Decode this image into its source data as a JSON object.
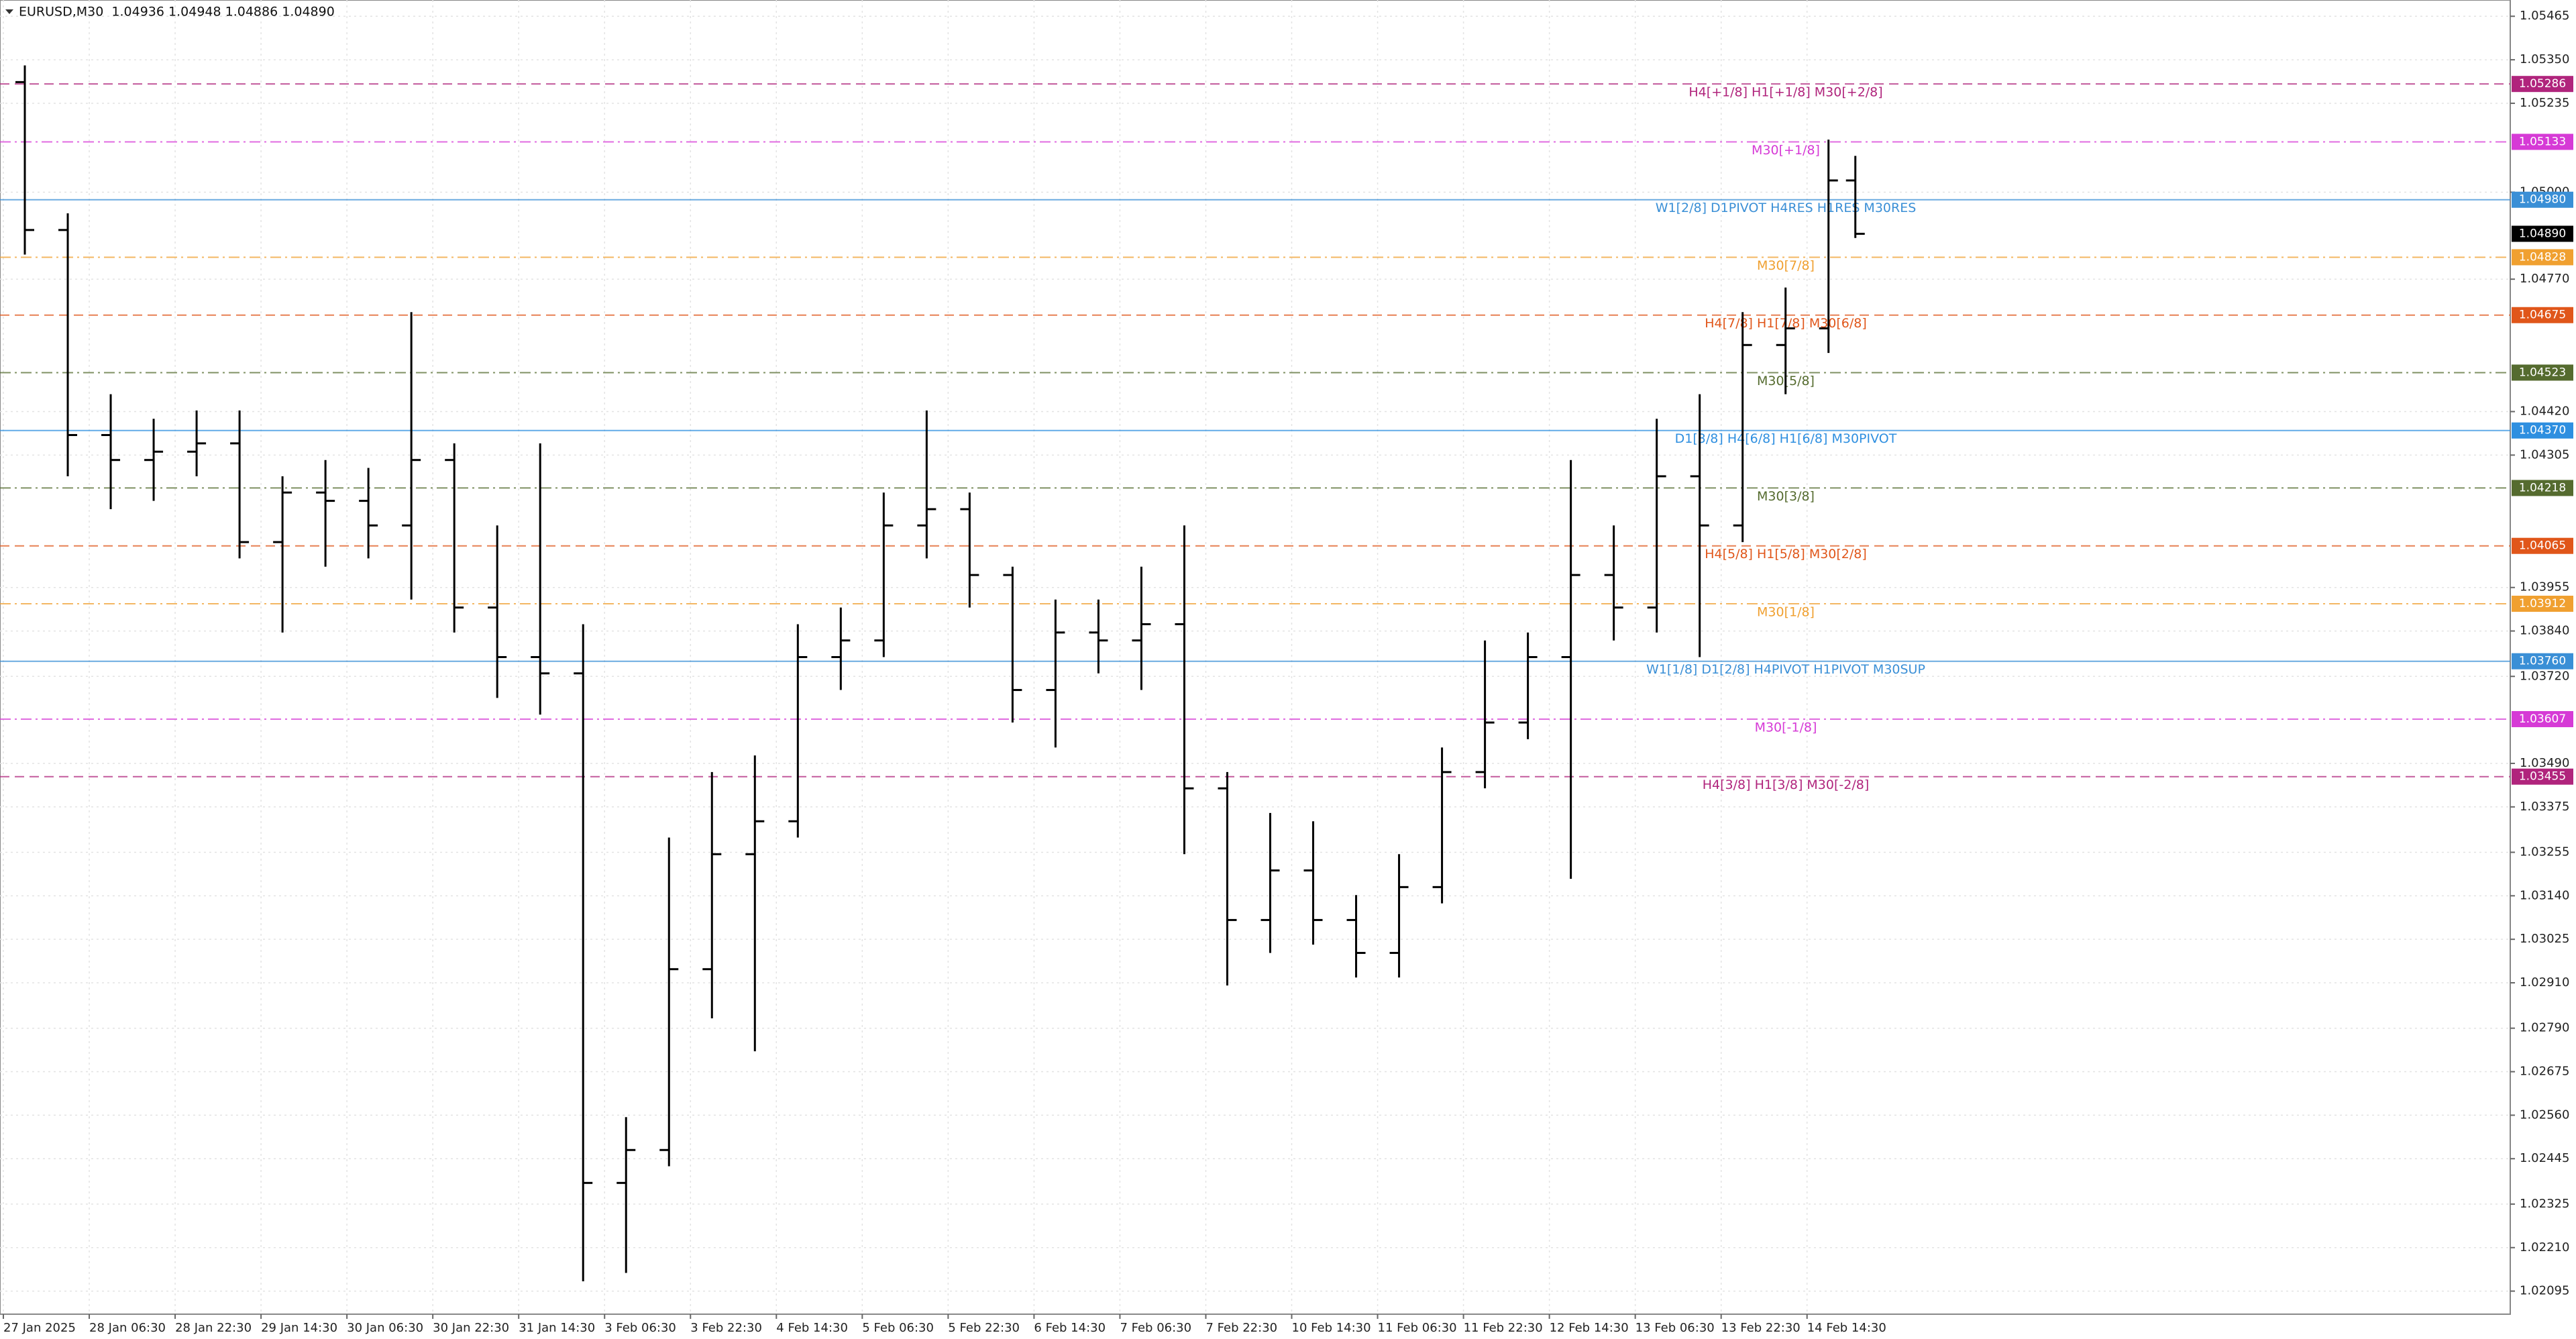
{
  "chart_data": {
    "type": "ohlc",
    "title": "EURUSD,M30  1.04936 1.04948 1.04886 1.04890",
    "x": [
      8,
      24,
      40,
      56,
      72,
      88,
      104,
      120,
      136,
      152,
      168,
      184,
      200,
      216,
      232,
      248,
      264,
      280,
      296,
      312,
      328,
      344,
      360,
      376,
      392,
      408,
      424,
      440,
      456,
      472,
      488,
      504,
      520,
      536,
      552,
      568,
      584,
      600,
      616,
      632,
      648,
      664,
      680,
      690
    ],
    "open": [
      1.05291,
      1.049,
      1.04358,
      1.04292,
      1.04314,
      1.04336,
      1.04075,
      1.04206,
      1.04184,
      1.04119,
      1.04292,
      1.03902,
      1.03771,
      1.03728,
      1.02381,
      1.02468,
      1.02946,
      1.0325,
      1.03337,
      1.03771,
      1.03815,
      1.04119,
      1.04162,
      1.03988,
      1.03684,
      1.03836,
      1.03815,
      1.03858,
      1.03424,
      1.03076,
      1.03207,
      1.03076,
      1.02989,
      1.03163,
      1.03467,
      1.03598,
      1.03771,
      1.03988,
      1.03902,
      1.04249,
      1.04119,
      1.04596,
      1.0464,
      1.05031
    ],
    "high": [
      1.05335,
      1.04944,
      1.04466,
      1.04401,
      1.04423,
      1.04423,
      1.04249,
      1.04292,
      1.04271,
      1.04683,
      1.04336,
      1.04119,
      1.04336,
      1.03858,
      1.02555,
      1.03294,
      1.03467,
      1.03511,
      1.03858,
      1.03902,
      1.04206,
      1.04423,
      1.04206,
      1.0401,
      1.03923,
      1.03923,
      1.0401,
      1.04119,
      1.03467,
      1.03359,
      1.03337,
      1.03142,
      1.0325,
      1.03532,
      1.03815,
      1.03836,
      1.04292,
      1.04119,
      1.04401,
      1.04466,
      1.04683,
      1.04748,
      1.05139,
      1.05096
    ],
    "low": [
      1.04835,
      1.04249,
      1.04162,
      1.04184,
      1.04249,
      1.04032,
      1.03836,
      1.0401,
      1.04032,
      1.03923,
      1.03836,
      1.03663,
      1.03619,
      1.02121,
      1.02143,
      1.02425,
      1.02816,
      1.02729,
      1.03294,
      1.03684,
      1.03771,
      1.04032,
      1.03902,
      1.03598,
      1.03532,
      1.03728,
      1.03684,
      1.0325,
      1.02903,
      1.02989,
      1.03011,
      1.02924,
      1.02924,
      1.0312,
      1.03424,
      1.03554,
      1.03185,
      1.03815,
      1.03836,
      1.03771,
      1.04075,
      1.04466,
      1.04575,
      1.04879
    ],
    "close": [
      1.049,
      1.04358,
      1.04292,
      1.04314,
      1.04336,
      1.04075,
      1.04206,
      1.04184,
      1.04119,
      1.04292,
      1.03902,
      1.03771,
      1.03728,
      1.02381,
      1.02468,
      1.02946,
      1.0325,
      1.03337,
      1.03771,
      1.03815,
      1.04119,
      1.04162,
      1.03988,
      1.03684,
      1.03836,
      1.03815,
      1.03858,
      1.03424,
      1.03076,
      1.03207,
      1.03076,
      1.02989,
      1.03163,
      1.03467,
      1.03598,
      1.03771,
      1.03988,
      1.03902,
      1.04249,
      1.04119,
      1.04596,
      1.0464,
      1.05031,
      1.0489
    ],
    "color": "#000000",
    "xlim": [
      0,
      934
    ],
    "xticks": [
      {
        "value": 0,
        "label": "27 Jan 2025"
      },
      {
        "value": 32,
        "label": "28 Jan 06:30"
      },
      {
        "value": 64,
        "label": "28 Jan 22:30"
      },
      {
        "value": 96,
        "label": "29 Jan 14:30"
      },
      {
        "value": 128,
        "label": "30 Jan 06:30"
      },
      {
        "value": 160,
        "label": "30 Jan 22:30"
      },
      {
        "value": 192,
        "label": "31 Jan 14:30"
      },
      {
        "value": 224,
        "label": "3 Feb 06:30"
      },
      {
        "value": 256,
        "label": "3 Feb 22:30"
      },
      {
        "value": 288,
        "label": "4 Feb 14:30"
      },
      {
        "value": 320,
        "label": "5 Feb 06:30"
      },
      {
        "value": 352,
        "label": "5 Feb 22:30"
      },
      {
        "value": 384,
        "label": "6 Feb 14:30"
      },
      {
        "value": 416,
        "label": "7 Feb 06:30"
      },
      {
        "value": 448,
        "label": "7 Feb 22:30"
      },
      {
        "value": 480,
        "label": "10 Feb 14:30"
      },
      {
        "value": 512,
        "label": "11 Feb 06:30"
      },
      {
        "value": 544,
        "label": "11 Feb 22:30"
      },
      {
        "value": 576,
        "label": "12 Feb 14:30"
      },
      {
        "value": 608,
        "label": "13 Feb 06:30"
      },
      {
        "value": 640,
        "label": "13 Feb 22:30"
      },
      {
        "value": 672,
        "label": "14 Feb 14:30"
      }
    ],
    "ylim": [
      1.02034,
      1.05508
    ],
    "yticks": [
      1.05465,
      {
        "value": 1.0535,
        "label": "1.05350"
      },
      1.05235,
      {
        "value": 1.05,
        "label": "1.05000"
      },
      {
        "value": 1.0477,
        "label": "1.04770"
      },
      {
        "value": 1.0442,
        "label": "1.04420"
      },
      1.04305,
      1.03955,
      {
        "value": 1.0384,
        "label": "1.03840"
      },
      {
        "value": 1.0372,
        "label": "1.03720"
      },
      {
        "value": 1.0349,
        "label": "1.03490"
      },
      1.03375,
      1.03255,
      {
        "value": 1.0314,
        "label": "1.03140"
      },
      1.03025,
      {
        "value": 1.0291,
        "label": "1.02910"
      },
      {
        "value": 1.0279,
        "label": "1.02790"
      },
      1.02675,
      {
        "value": 1.0256,
        "label": "1.02560"
      },
      1.02445,
      1.02325,
      {
        "value": 1.0221,
        "label": "1.02210"
      },
      1.02095
    ],
    "grid": true,
    "levels": [
      {
        "name": "H4[+1/8] H1[+1/8] M30[+2/8]",
        "value": 1.05286,
        "label": "1.05286",
        "color": "#b0247c",
        "style": "dash"
      },
      {
        "name": "M30[+1/8]",
        "value": 1.05133,
        "label": "1.05133",
        "color": "#d63ad6",
        "style": "dashdot"
      },
      {
        "name": "W1[2/8] D1PIVOT H4RES H1RES M30RES",
        "value": 1.0498,
        "label": "1.04980",
        "color": "#3a8fd6",
        "style": "solid"
      },
      {
        "name": "M30[7/8]",
        "value": 1.04828,
        "label": "1.04828",
        "color": "#f0a030",
        "style": "dashdot"
      },
      {
        "name": "H4[7/8] H1[7/8] M30[6/8]",
        "value": 1.04675,
        "label": "1.04675",
        "color": "#e0561a",
        "style": "dash"
      },
      {
        "name": "M30[5/8]",
        "value": 1.04523,
        "label": "1.04523",
        "color": "#556b2f",
        "style": "dashdot"
      },
      {
        "name": "D1[3/8] H4[6/8] H1[6/8] M30PIVOT",
        "value": 1.0437,
        "label": "1.04370",
        "color": "#2e8fe0",
        "style": "solid"
      },
      {
        "name": "M30[3/8]",
        "value": 1.04218,
        "label": "1.04218",
        "color": "#556b2f",
        "style": "dashdot"
      },
      {
        "name": "H4[5/8] H1[5/8] M30[2/8]",
        "value": 1.04065,
        "label": "1.04065",
        "color": "#e0561a",
        "style": "dash"
      },
      {
        "name": "M30[1/8]",
        "value": 1.03912,
        "label": "1.03912",
        "color": "#f0a030",
        "style": "dashdot"
      },
      {
        "name": "W1[1/8] D1[2/8] H4PIVOT H1PIVOT M30SUP",
        "value": 1.0376,
        "label": "1.03760",
        "color": "#3a8fd6",
        "style": "solid"
      },
      {
        "name": "M30[-1/8]",
        "value": 1.03607,
        "label": "1.03607",
        "color": "#d63ad6",
        "style": "dashdot"
      },
      {
        "name": "H4[3/8] H1[3/8] M30[-2/8]",
        "value": 1.03455,
        "label": "1.03455",
        "color": "#b0247c",
        "style": "dash"
      }
    ],
    "current": {
      "value": 1.0489,
      "label": "1.04890",
      "color": "#000000"
    }
  }
}
